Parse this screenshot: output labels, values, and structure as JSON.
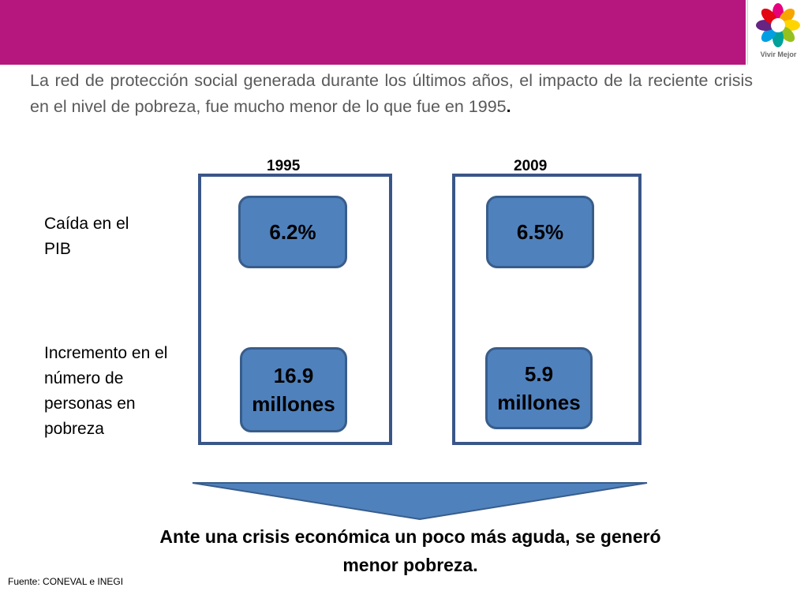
{
  "logo": {
    "text": "Vivir Mejor"
  },
  "intro": {
    "text": "La red de protección social generada durante los últimos años, el impacto de la reciente crisis  en el nivel de pobreza, fue mucho menor de lo que fue en 1995",
    "end": "."
  },
  "columns": [
    {
      "year": "1995",
      "pib": "6.2%",
      "pobreza": "16.9 millones"
    },
    {
      "year": "2009",
      "pib": "6.5%",
      "pobreza": "5.9 millones"
    }
  ],
  "rows": {
    "pib_label": "Caída en el PIB",
    "pobreza_label": "Incremento en el número de personas en pobreza"
  },
  "conclusion": "Ante una crisis económica un poco más aguda, se generó menor pobreza.",
  "source": "Fuente: CONEVAL e INEGI",
  "colors": {
    "header": "#b5177f",
    "pill_fill": "#4f81bd",
    "pill_border": "#385d8a",
    "frame": "#3a5688",
    "intro_text": "#5a5a5a"
  }
}
